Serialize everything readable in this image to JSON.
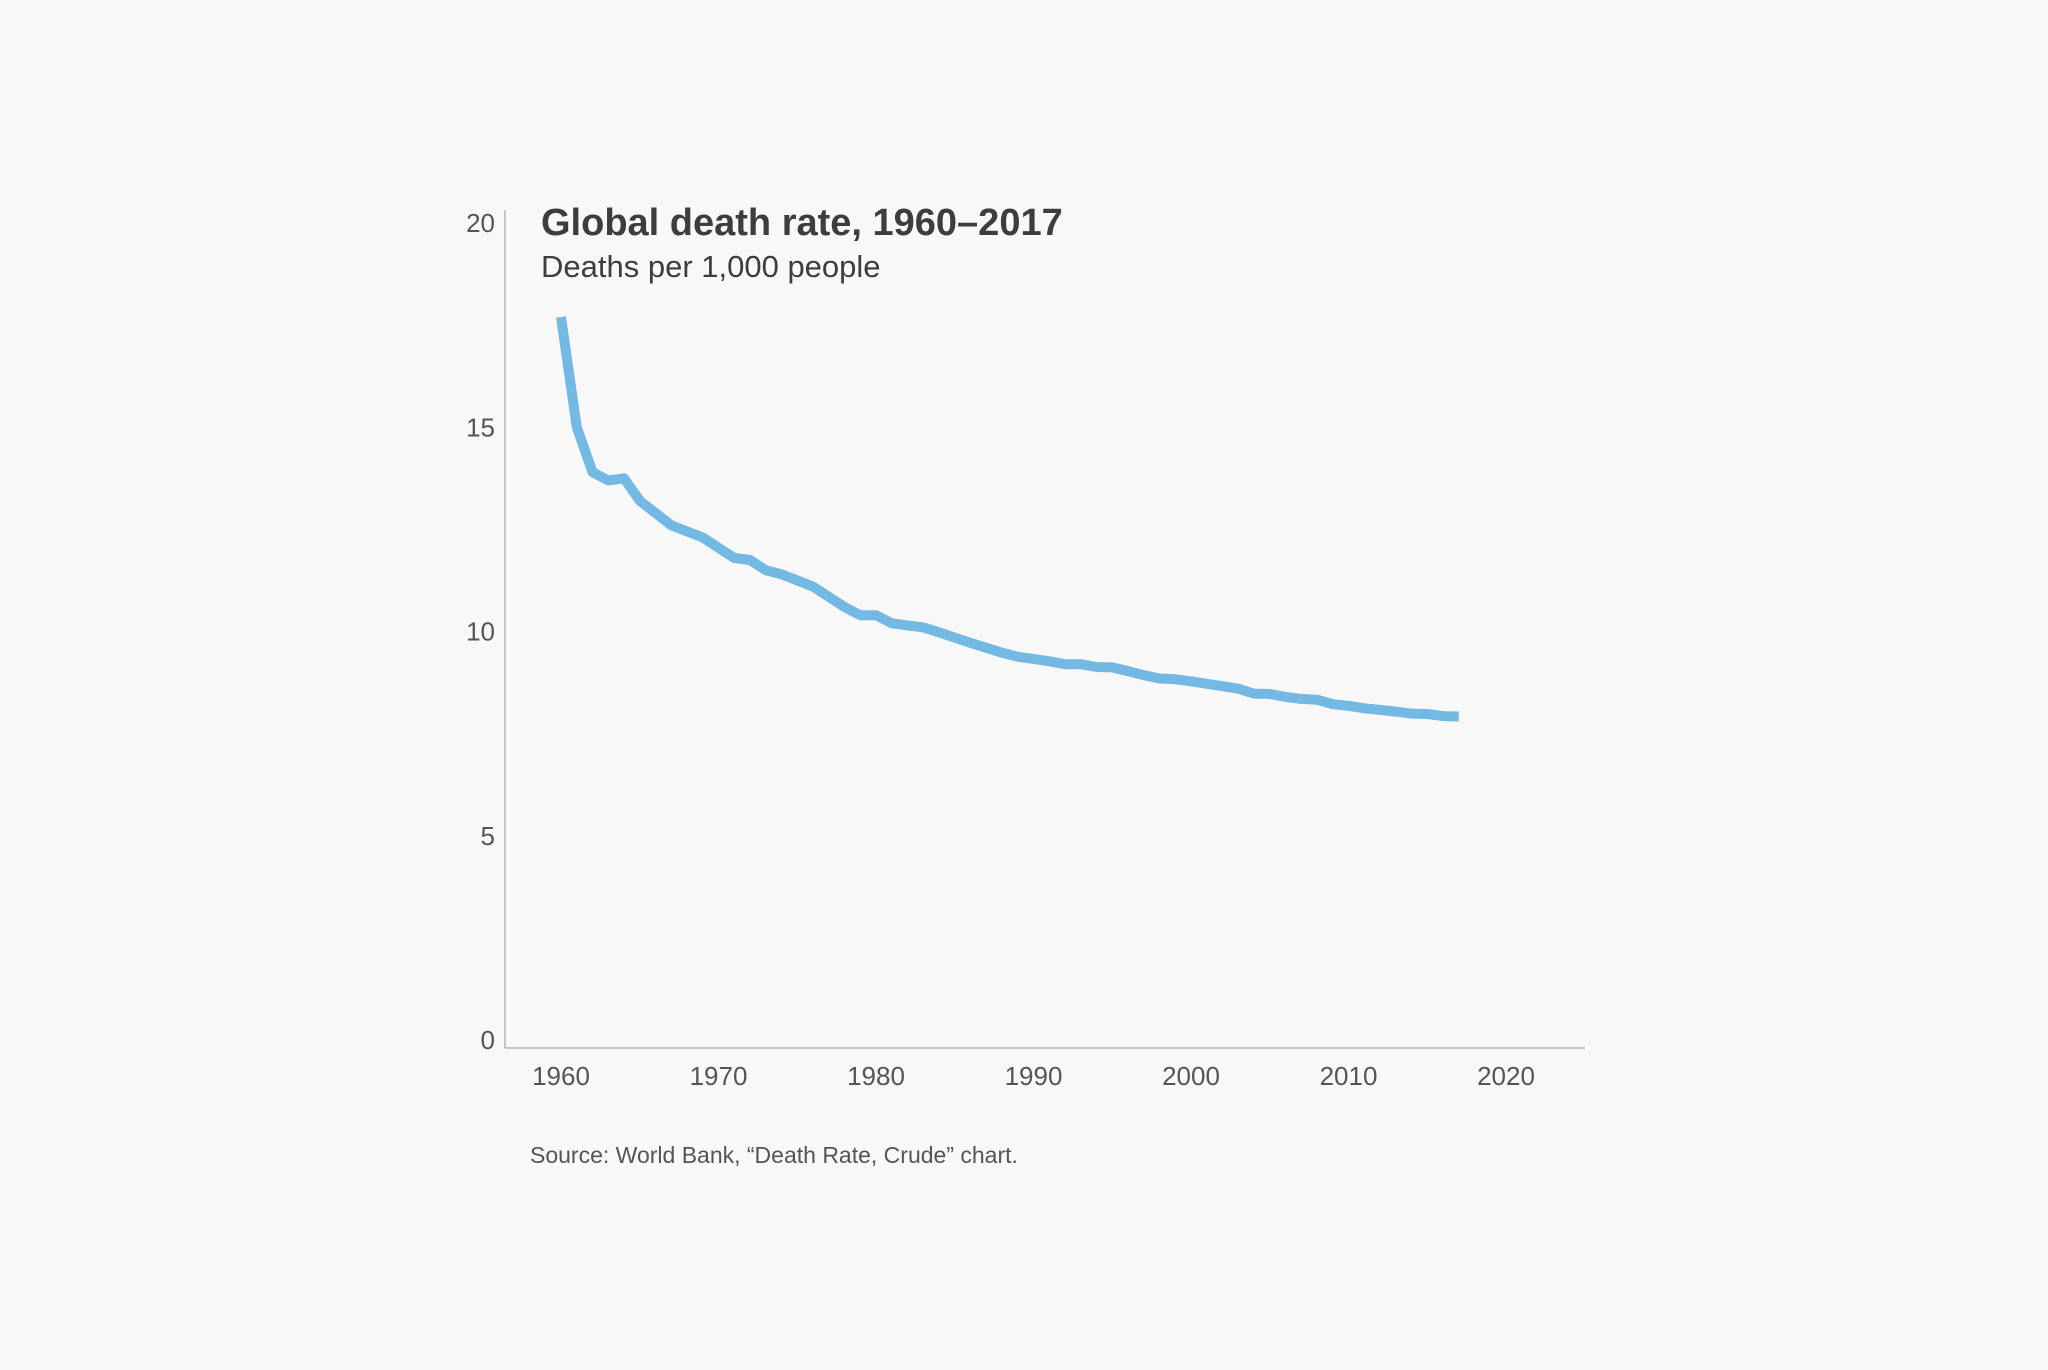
{
  "chart_data": {
    "type": "line",
    "title": "Global death rate, 1960–2017",
    "subtitle": "Deaths per 1,000 people",
    "source": "Source: World Bank, “Death Rate, Crude” chart.",
    "xlabel": "",
    "ylabel": "",
    "xlim": [
      1960,
      2020
    ],
    "ylim": [
      0,
      20
    ],
    "x_ticks": [
      1960,
      1970,
      1980,
      1990,
      2000,
      2010,
      2020
    ],
    "y_ticks": [
      0,
      5,
      10,
      15,
      20
    ],
    "grid": false,
    "legend": "none",
    "line_color": "#74b9e3",
    "series": [
      {
        "x": [
          1960,
          1961,
          1962,
          1963,
          1964,
          1965,
          1966,
          1967,
          1968,
          1969,
          1970,
          1971,
          1972,
          1973,
          1974,
          1975,
          1976,
          1977,
          1978,
          1979,
          1980,
          1981,
          1982,
          1983,
          1984,
          1985,
          1986,
          1987,
          1988,
          1989,
          1990,
          1991,
          1992,
          1993,
          1994,
          1995,
          1996,
          1997,
          1998,
          1999,
          2000,
          2001,
          2002,
          2003,
          2004,
          2005,
          2006,
          2007,
          2008,
          2009,
          2010,
          2011,
          2012,
          2013,
          2014,
          2015,
          2016,
          2017
        ],
        "values": [
          17.7,
          15.0,
          13.9,
          13.7,
          13.75,
          13.2,
          12.9,
          12.6,
          12.45,
          12.3,
          12.05,
          11.8,
          11.75,
          11.5,
          11.4,
          11.25,
          11.1,
          10.85,
          10.6,
          10.4,
          10.4,
          10.2,
          10.15,
          10.1,
          9.98,
          9.85,
          9.72,
          9.6,
          9.48,
          9.38,
          9.33,
          9.27,
          9.2,
          9.2,
          9.13,
          9.12,
          9.03,
          8.93,
          8.85,
          8.83,
          8.78,
          8.72,
          8.66,
          8.6,
          8.48,
          8.47,
          8.4,
          8.35,
          8.33,
          8.22,
          8.18,
          8.12,
          8.08,
          8.04,
          7.99,
          7.98,
          7.93,
          7.92
        ]
      }
    ]
  }
}
